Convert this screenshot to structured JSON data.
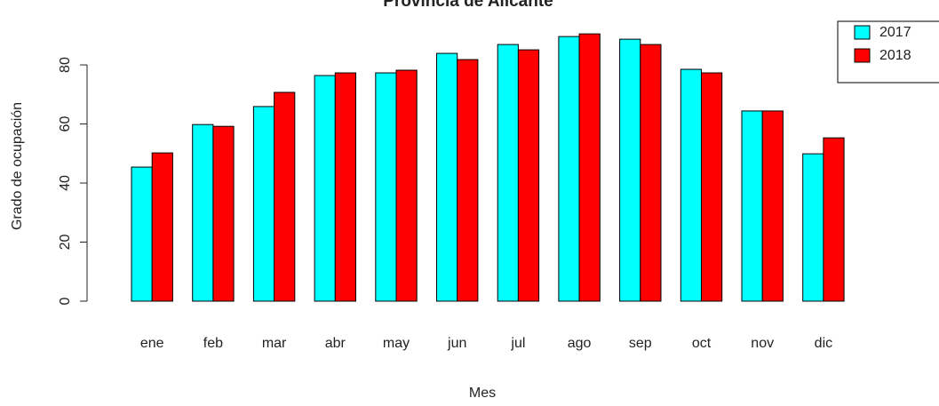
{
  "chart_data": {
    "type": "bar",
    "title": "Provincia de Alicante",
    "x_label": "Mes",
    "y_label": "Grado de ocupación",
    "categories": [
      "ene",
      "feb",
      "mar",
      "abr",
      "may",
      "jun",
      "jul",
      "ago",
      "sep",
      "oct",
      "nov",
      "dic"
    ],
    "series": [
      {
        "name": "2017",
        "color": "#00ffff",
        "values": [
          45.4,
          59.8,
          65.9,
          76.4,
          77.3,
          83.9,
          86.9,
          89.6,
          88.7,
          78.5,
          64.4,
          49.9
        ]
      },
      {
        "name": "2018",
        "color": "#ff0000",
        "values": [
          50.2,
          59.2,
          70.7,
          77.3,
          78.2,
          81.8,
          85.1,
          90.5,
          86.9,
          77.3,
          64.4,
          55.3
        ]
      }
    ],
    "ylim": [
      0,
      94
    ],
    "yticks": [
      0,
      20,
      40,
      60,
      80
    ],
    "legend": "topright"
  }
}
